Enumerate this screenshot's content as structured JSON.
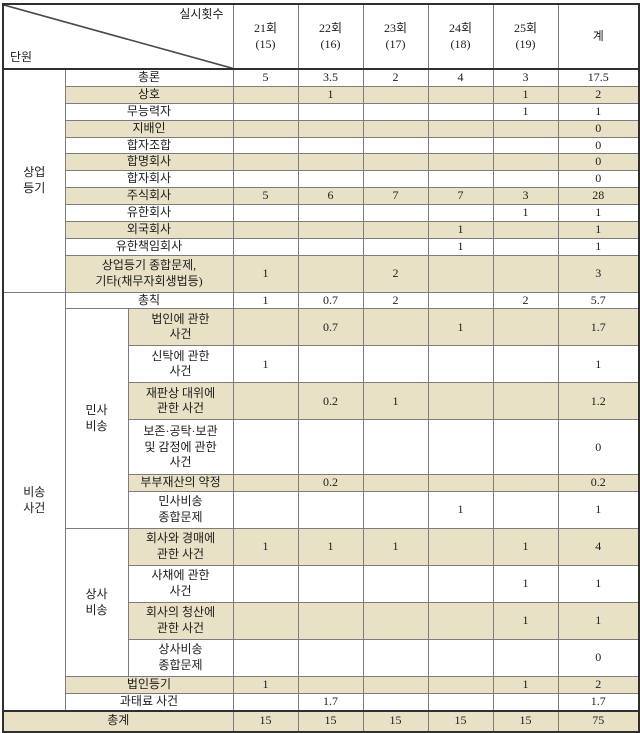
{
  "header": {
    "corner_top": "실시횟수",
    "corner_bottom": "단원",
    "columns": [
      "21회\n(15)",
      "22회\n(16)",
      "23회\n(17)",
      "24회\n(18)",
      "25회\n(19)",
      "계"
    ]
  },
  "colors": {
    "row_shade": "#e9e1c5",
    "grid_line": "#7c7c7c",
    "outer_border": "#2f2f2f"
  },
  "rows": [
    {
      "h": 15,
      "shaded": false,
      "label_span": 2,
      "label": "총론",
      "group": {
        "text": "상업\n등기",
        "span": 12
      },
      "values": [
        "5",
        "3.5",
        "2",
        "4",
        "3",
        "17.5"
      ]
    },
    {
      "h": 15,
      "shaded": true,
      "label_span": 2,
      "label": "상호",
      "values": [
        "",
        "1",
        "",
        "",
        "1",
        "2"
      ]
    },
    {
      "h": 15,
      "shaded": false,
      "label_span": 2,
      "label": "무능력자",
      "values": [
        "",
        "",
        "",
        "",
        "1",
        "1"
      ]
    },
    {
      "h": 15,
      "shaded": true,
      "label_span": 2,
      "label": "지배인",
      "values": [
        "",
        "",
        "",
        "",
        "",
        "0"
      ]
    },
    {
      "h": 15,
      "shaded": false,
      "label_span": 2,
      "label": "합자조합",
      "values": [
        "",
        "",
        "",
        "",
        "",
        "0"
      ]
    },
    {
      "h": 15,
      "shaded": true,
      "label_span": 2,
      "label": "합명회사",
      "values": [
        "",
        "",
        "",
        "",
        "",
        "0"
      ]
    },
    {
      "h": 15,
      "shaded": false,
      "label_span": 2,
      "label": "합자회사",
      "values": [
        "",
        "",
        "",
        "",
        "",
        "0"
      ]
    },
    {
      "h": 15,
      "shaded": true,
      "label_span": 2,
      "label": "주식회사",
      "values": [
        "5",
        "6",
        "7",
        "7",
        "3",
        "28"
      ]
    },
    {
      "h": 15,
      "shaded": false,
      "label_span": 2,
      "label": "유한회사",
      "values": [
        "",
        "",
        "",
        "",
        "1",
        "1"
      ]
    },
    {
      "h": 15,
      "shaded": true,
      "label_span": 2,
      "label": "외국회사",
      "values": [
        "",
        "",
        "",
        "1",
        "",
        "1"
      ]
    },
    {
      "h": 16,
      "shaded": false,
      "label_span": 2,
      "label": "유한책임회사",
      "values": [
        "",
        "",
        "",
        "1",
        "",
        "1"
      ]
    },
    {
      "h": 36,
      "shaded": true,
      "label_span": 2,
      "label": "상업등기 종합문제,\n기타(채무자회생법등)",
      "values": [
        "1",
        "",
        "2",
        "",
        "",
        "3"
      ]
    },
    {
      "h": 15,
      "shaded": false,
      "label_span": 2,
      "label": "총칙",
      "group": {
        "text": "비송\n사건",
        "span": 13
      },
      "values": [
        "1",
        "0.7",
        "2",
        "",
        "2",
        "5.7"
      ]
    },
    {
      "h": 36,
      "shaded": true,
      "label_span": 1,
      "label": "법인에 관한\n사건",
      "subgroup": {
        "text": "민사\n비송",
        "span": 6
      },
      "values": [
        "",
        "0.7",
        "",
        "1",
        "",
        "1.7"
      ]
    },
    {
      "h": 36,
      "shaded": false,
      "label_span": 1,
      "label": "신탁에 관한\n사건",
      "values": [
        "1",
        "",
        "",
        "",
        "",
        "1"
      ]
    },
    {
      "h": 36,
      "shaded": true,
      "label_span": 1,
      "label": "재판상 대위에\n관한 사건",
      "values": [
        "",
        "0.2",
        "1",
        "",
        "",
        "1.2"
      ]
    },
    {
      "h": 54,
      "shaded": false,
      "label_span": 1,
      "label": "보존·공탁·보관\n및 감정에 관한\n사건",
      "values": [
        "",
        "",
        "",
        "",
        "",
        "0"
      ]
    },
    {
      "h": 15,
      "shaded": true,
      "label_span": 1,
      "label": "부부재산의 약정",
      "values": [
        "",
        "0.2",
        "",
        "",
        "",
        "0.2"
      ]
    },
    {
      "h": 36,
      "shaded": false,
      "label_span": 1,
      "label": "민사비송\n종합문제",
      "values": [
        "",
        "",
        "",
        "1",
        "",
        "1"
      ]
    },
    {
      "h": 36,
      "shaded": true,
      "label_span": 1,
      "label": "회사와 경매에\n관한 사건",
      "subgroup": {
        "text": "상사\n비송",
        "span": 4
      },
      "values": [
        "1",
        "1",
        "1",
        "",
        "1",
        "4"
      ]
    },
    {
      "h": 36,
      "shaded": false,
      "label_span": 1,
      "label": "사채에 관한\n사건",
      "values": [
        "",
        "",
        "",
        "",
        "1",
        "1"
      ]
    },
    {
      "h": 36,
      "shaded": true,
      "label_span": 1,
      "label": "회사의 청산에\n관한 사건",
      "values": [
        "",
        "",
        "",
        "",
        "1",
        "1"
      ]
    },
    {
      "h": 36,
      "shaded": false,
      "label_span": 1,
      "label": "상사비송\n종합문제",
      "values": [
        "",
        "",
        "",
        "",
        "",
        "0"
      ]
    },
    {
      "h": 15,
      "shaded": true,
      "label_span": 2,
      "label": "법인등기",
      "values": [
        "1",
        "",
        "",
        "",
        "1",
        "2"
      ]
    },
    {
      "h": 15,
      "shaded": false,
      "label_span": 2,
      "label": "과태료 사건",
      "values": [
        "",
        "1.7",
        "",
        "",
        "",
        "1.7"
      ]
    },
    {
      "h": 19,
      "shaded": true,
      "label_span": 3,
      "label": "총계",
      "total": true,
      "values": [
        "15",
        "15",
        "15",
        "15",
        "15",
        "75"
      ]
    }
  ]
}
